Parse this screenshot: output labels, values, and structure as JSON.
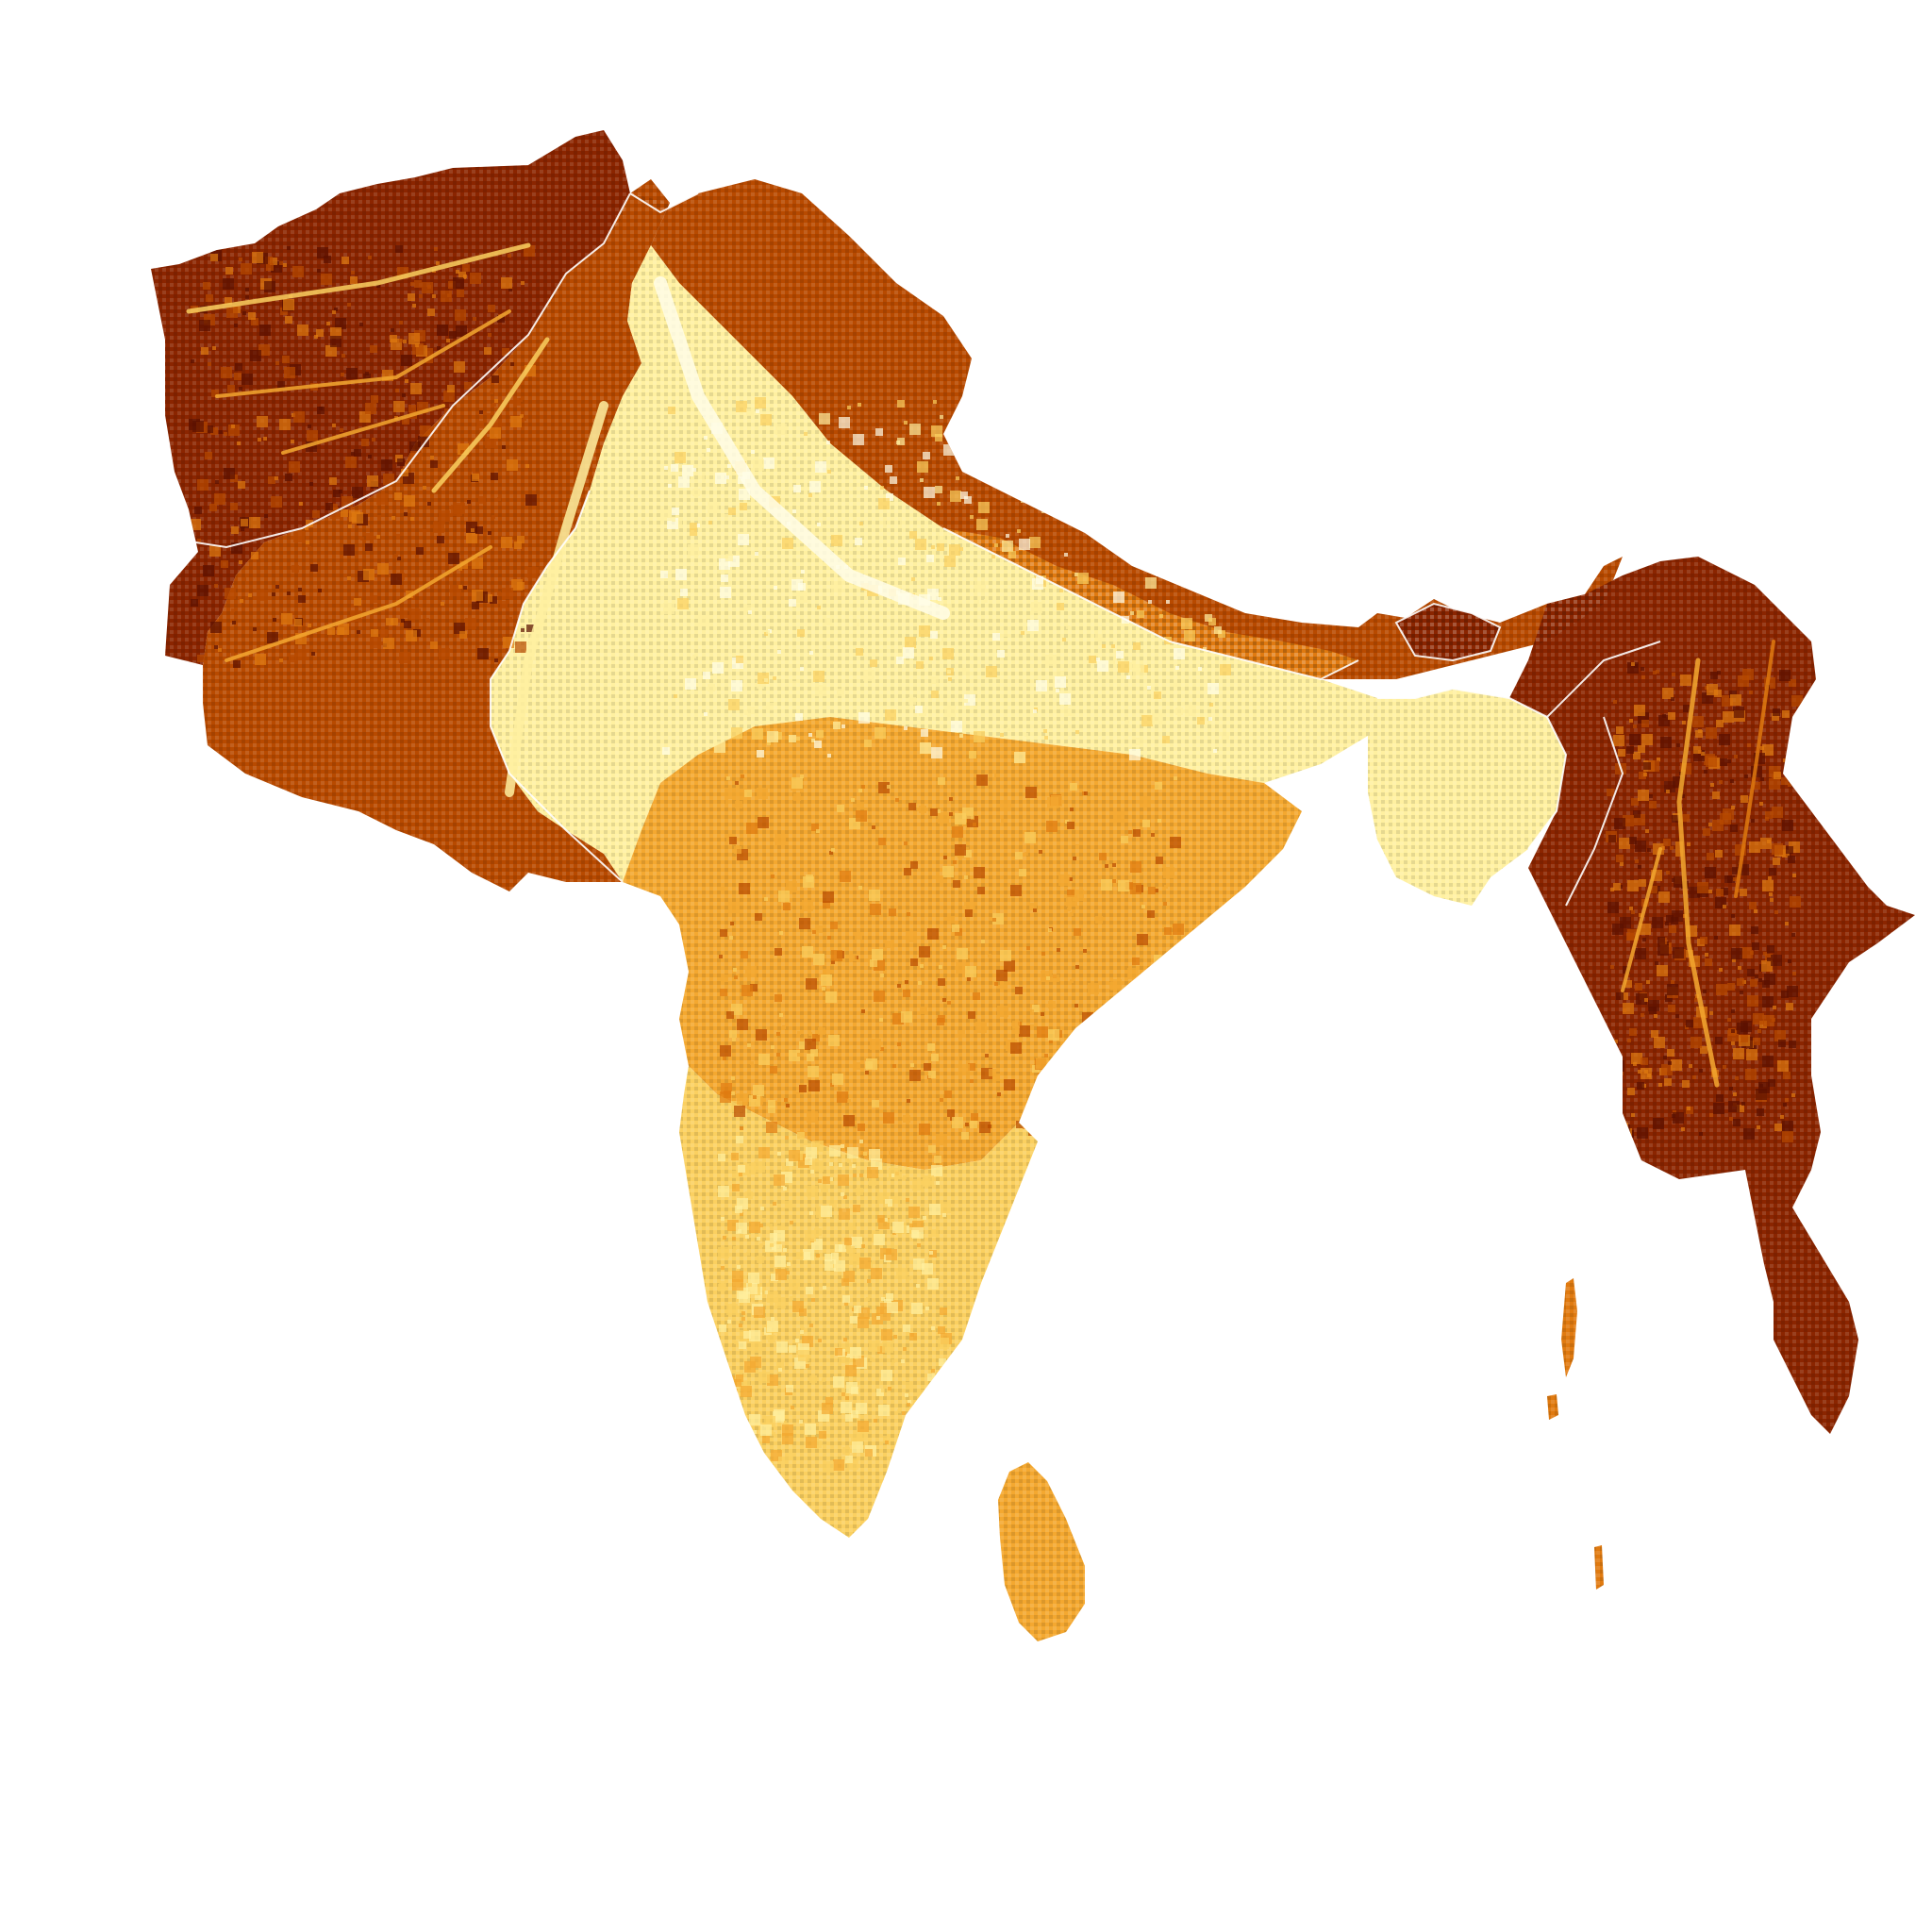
{
  "map": {
    "palette": {
      "darkest": "#5a0f00",
      "dark": "#8b2500",
      "mid_dark": "#b84a00",
      "mid": "#e07a10",
      "mid_light": "#f4a830",
      "light": "#fbd060",
      "lighter": "#fff0a0",
      "lightest": "#fffde8",
      "border": "#ffffff",
      "background": "#ffffff"
    },
    "regions": [
      {
        "name": "afghanistan",
        "level": 0.15
      },
      {
        "name": "pakistan",
        "level": 0.35
      },
      {
        "name": "india-north",
        "level": 0.9
      },
      {
        "name": "india-central",
        "level": 0.55
      },
      {
        "name": "india-south",
        "level": 0.75
      },
      {
        "name": "nepal",
        "level": 0.4
      },
      {
        "name": "bangladesh",
        "level": 0.92
      },
      {
        "name": "bhutan",
        "level": 0.2
      },
      {
        "name": "myanmar",
        "level": 0.2
      },
      {
        "name": "sri-lanka",
        "level": 0.5
      },
      {
        "name": "andaman-islands",
        "level": 0.4
      }
    ]
  }
}
